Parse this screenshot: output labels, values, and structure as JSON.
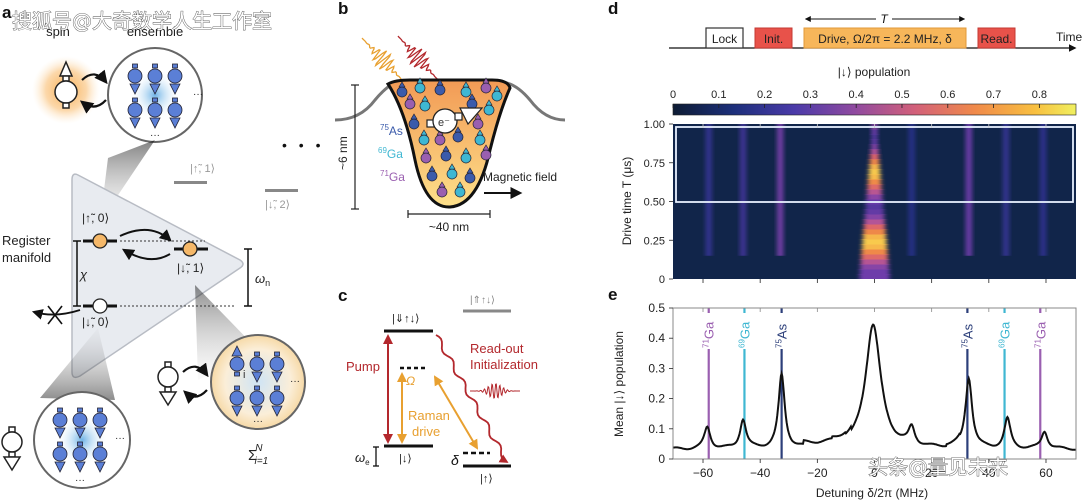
{
  "watermarks": {
    "top_left": "搜狐号@大奇数学人生工作室",
    "bottom_right": "头条@量见未来"
  },
  "panel_a": {
    "letter": "a",
    "spin_label": "spin",
    "ensemble_label": "ensemble",
    "register_label_1": "Register",
    "register_label_2": "manifold",
    "state_up0": "|↑̃, 0⟩",
    "state_down1": "|↓̃, 1⟩",
    "state_down0": "|↓̃, 0⟩",
    "state_up1": "|↑̃, 1⟩",
    "state_down2": "|↓̃, 2⟩",
    "chi_label": "χ",
    "omega_n_label": "ω",
    "omega_n_sub": "n",
    "ellipsis": "• • •",
    "dots": "···",
    "sum_label": "Σ",
    "sum_sup": "N",
    "sum_sub": "i=1",
    "index_label": "i",
    "colors": {
      "nucleus_blue": "#5b7fd6",
      "electron_orange": "#f5b869",
      "triangle_fill": "#e8ebf0",
      "glow_orange": "#f7a94a"
    }
  },
  "panel_b": {
    "letter": "b",
    "height_label": "~6 nm",
    "width_label": "~40 nm",
    "electron_label": "e⁻",
    "field_label": "Magnetic field",
    "isotopes": [
      {
        "sup": "75",
        "name": "As",
        "color": "#3b5bab"
      },
      {
        "sup": "69",
        "name": "Ga",
        "color": "#3fb7d2"
      },
      {
        "sup": "71",
        "name": "Ga",
        "color": "#9a5fb0"
      }
    ]
  },
  "panel_c": {
    "letter": "c",
    "level_top": "|⇓↑↓⟩",
    "level_gray": "|⇑↑↓⟩",
    "level_down": "|↓⟩",
    "level_up": "|↑⟩",
    "pump_label": "Pump",
    "omega_label": "Ω",
    "raman_label_1": "Raman",
    "raman_label_2": "drive",
    "readout_label": "Read-out",
    "init_label": "Initialization",
    "omega_e_label": "ω",
    "omega_e_sub": "e",
    "delta_label": "δ",
    "colors": {
      "pump": "#b3282d",
      "raman": "#e8a030"
    }
  },
  "panel_d": {
    "letter": "d",
    "sequence": {
      "T_label": "T",
      "time_label": "Time",
      "blocks": [
        {
          "label": "Lock",
          "fill": "#ffffff",
          "stroke": "#333333"
        },
        {
          "label": "Init.",
          "fill": "#e8524a",
          "stroke": "#c43a33"
        },
        {
          "label": "Drive, Ω/2π = 2.2 MHz, δ",
          "fill": "#f7b65a",
          "stroke": "#e09a3a"
        },
        {
          "label": "Read.",
          "fill": "#e8524a",
          "stroke": "#c43a33"
        }
      ]
    },
    "colorbar": {
      "title": "|↓⟩ population",
      "ticks": [
        "0",
        "0.1",
        "0.2",
        "0.3",
        "0.4",
        "0.5",
        "0.6",
        "0.7",
        "0.8"
      ],
      "range": [
        0,
        0.88
      ]
    }
  },
  "chart_data": [
    {
      "type": "heatmap",
      "title": "",
      "xlabel": "",
      "ylabel": "Drive time T (μs)",
      "xlim": [
        -70.5,
        70.5
      ],
      "ylim": [
        0,
        1.0
      ],
      "yticks": [
        "0",
        "0.25",
        "0.50",
        "0.75",
        "1.00"
      ],
      "xticks": [
        -60,
        -40,
        -20,
        0,
        20,
        40,
        60
      ],
      "highlight_box": {
        "y_range": [
          0.5,
          1.0
        ]
      },
      "lines": [
        {
          "x": -58,
          "intensity": 0.18
        },
        {
          "x": -46,
          "intensity": 0.2
        },
        {
          "x": -33,
          "intensity": 0.32
        },
        {
          "x": 0,
          "intensity": 0.88
        },
        {
          "x": 13,
          "intensity": 0.14
        },
        {
          "x": 33,
          "intensity": 0.3
        },
        {
          "x": 46,
          "intensity": 0.18
        },
        {
          "x": 59,
          "intensity": 0.16
        }
      ]
    },
    {
      "type": "line",
      "title": "",
      "letter": "e",
      "xlabel": "Detuning δ/2π (MHz)",
      "ylabel": "Mean |↓⟩ population",
      "xlim": [
        -70.5,
        70.5
      ],
      "ylim": [
        0,
        0.5
      ],
      "xticks": [
        "-60",
        "-40",
        "-20",
        "0",
        "20",
        "40",
        "60"
      ],
      "yticks": [
        "0",
        "0.1",
        "0.2",
        "0.3",
        "0.4",
        "0.5"
      ],
      "baseline": 0.032,
      "peaks": [
        {
          "x": -58.5,
          "y": 0.104,
          "w": 1.3
        },
        {
          "x": -46,
          "y": 0.128,
          "w": 1.3
        },
        {
          "x": -32.5,
          "y": 0.275,
          "w": 1.3
        },
        {
          "x": -0.5,
          "y": 0.445,
          "w": 3.2
        },
        {
          "x": 13,
          "y": 0.09,
          "w": 1.3
        },
        {
          "x": 33,
          "y": 0.265,
          "w": 1.4
        },
        {
          "x": 46.5,
          "y": 0.13,
          "w": 1.3
        },
        {
          "x": 59.5,
          "y": 0.09,
          "w": 1.3
        }
      ],
      "markers": [
        {
          "x": -58,
          "sup": "71",
          "name": "Ga",
          "color": "#9a5fb0"
        },
        {
          "x": -45.5,
          "sup": "69",
          "name": "Ga",
          "color": "#3fb7d2"
        },
        {
          "x": -32.5,
          "sup": "75",
          "name": "As",
          "color": "#2c3f7a"
        },
        {
          "x": 32.5,
          "sup": "75",
          "name": "As",
          "color": "#2c3f7a"
        },
        {
          "x": 45.5,
          "sup": "69",
          "name": "Ga",
          "color": "#3fb7d2"
        },
        {
          "x": 58,
          "sup": "71",
          "name": "Ga",
          "color": "#9a5fb0"
        }
      ]
    }
  ]
}
